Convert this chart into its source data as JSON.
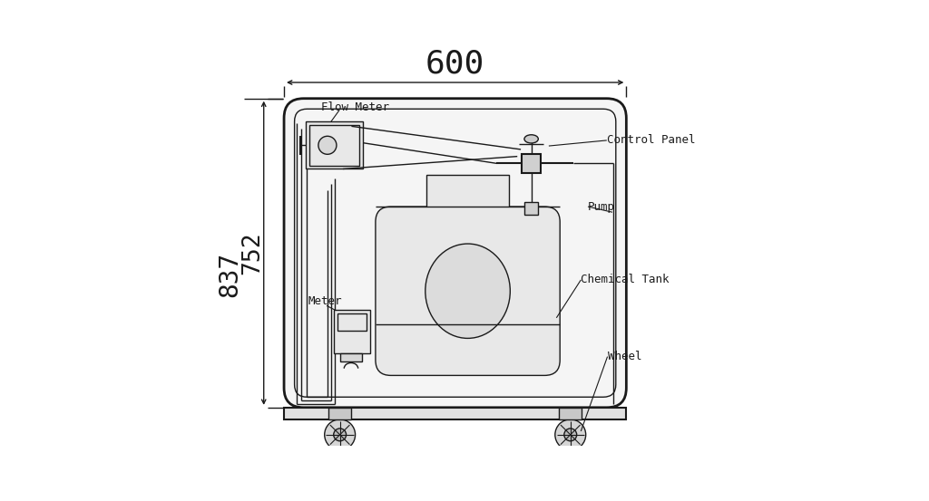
{
  "bg_color": "#ffffff",
  "line_color": "#1a1a1a",
  "cabinet_fill": "#f5f5f5",
  "inner_fill": "#ebebeb",
  "tank_fill": "#e8e8e8",
  "dim_600": "600",
  "dim_837": "837",
  "dim_752": "752",
  "label_flow_meter": "Flow Meter",
  "label_control_panel": "Control Panel",
  "label_pump": "Pump",
  "label_chemical_tank": "Chemical Tank",
  "label_meter": "Meter",
  "label_wheel": "Wheel",
  "font_size_dim": 20,
  "font_size_label": 9,
  "font_size_600": 26
}
